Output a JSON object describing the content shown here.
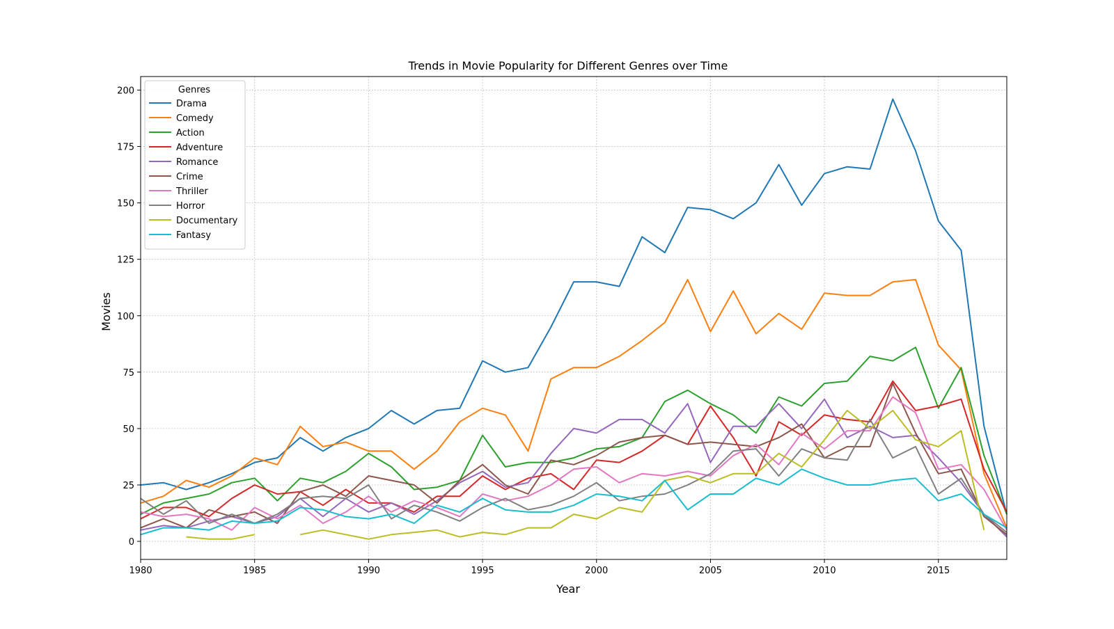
{
  "chart_data": {
    "type": "line",
    "title": "Trends in Movie Popularity for Different Genres over Time",
    "xlabel": "Year",
    "ylabel": "Movies",
    "xlim": [
      1980,
      2018
    ],
    "ylim": [
      -8,
      206
    ],
    "xticks": [
      1980,
      1985,
      1990,
      1995,
      2000,
      2005,
      2010,
      2015
    ],
    "yticks": [
      0,
      25,
      50,
      75,
      100,
      125,
      150,
      175,
      200
    ],
    "grid": true,
    "grid_style": "dotted",
    "legend": {
      "title": "Genres",
      "placement": "top-left"
    },
    "x": [
      1980,
      1981,
      1982,
      1983,
      1984,
      1985,
      1986,
      1987,
      1988,
      1989,
      1990,
      1991,
      1992,
      1993,
      1994,
      1995,
      1996,
      1997,
      1998,
      1999,
      2000,
      2001,
      2002,
      2003,
      2004,
      2005,
      2006,
      2007,
      2008,
      2009,
      2010,
      2011,
      2012,
      2013,
      2014,
      2015,
      2016,
      2017,
      2018
    ],
    "series": [
      {
        "name": "Drama",
        "color": "#1f77b4",
        "values": [
          25,
          26,
          23,
          26,
          30,
          35,
          37,
          46,
          40,
          46,
          50,
          58,
          52,
          58,
          59,
          80,
          75,
          77,
          95,
          115,
          115,
          113,
          135,
          128,
          148,
          147,
          143,
          150,
          167,
          149,
          163,
          166,
          165,
          196,
          173,
          142,
          129,
          51,
          12
        ]
      },
      {
        "name": "Comedy",
        "color": "#ff7f0e",
        "values": [
          17,
          20,
          27,
          24,
          29,
          37,
          34,
          51,
          42,
          44,
          40,
          40,
          32,
          40,
          53,
          59,
          56,
          40,
          72,
          77,
          77,
          82,
          89,
          97,
          116,
          93,
          111,
          92,
          101,
          94,
          110,
          109,
          109,
          115,
          116,
          87,
          76,
          30,
          6
        ]
      },
      {
        "name": "Action",
        "color": "#2ca02c",
        "values": [
          12,
          17,
          19,
          21,
          26,
          28,
          18,
          28,
          26,
          31,
          39,
          33,
          23,
          24,
          27,
          47,
          33,
          35,
          35,
          37,
          41,
          42,
          46,
          62,
          67,
          61,
          56,
          48,
          64,
          60,
          70,
          71,
          82,
          80,
          86,
          59,
          77,
          38,
          12
        ]
      },
      {
        "name": "Adventure",
        "color": "#d62728",
        "values": [
          10,
          15,
          15,
          11,
          19,
          25,
          21,
          22,
          16,
          23,
          17,
          17,
          13,
          20,
          20,
          29,
          23,
          28,
          30,
          23,
          36,
          35,
          40,
          47,
          43,
          60,
          46,
          29,
          53,
          47,
          56,
          54,
          53,
          71,
          58,
          60,
          63,
          32,
          13
        ]
      },
      {
        "name": "Romance",
        "color": "#9467bd",
        "values": [
          5,
          7,
          6,
          9,
          11,
          8,
          11,
          19,
          11,
          19,
          13,
          17,
          12,
          18,
          26,
          31,
          24,
          26,
          39,
          50,
          48,
          54,
          54,
          48,
          61,
          35,
          51,
          51,
          61,
          50,
          63,
          46,
          51,
          46,
          47,
          37,
          26,
          12,
          2
        ]
      },
      {
        "name": "Crime",
        "color": "#8c564b",
        "values": [
          6,
          10,
          6,
          14,
          11,
          13,
          8,
          22,
          25,
          20,
          29,
          27,
          25,
          17,
          27,
          34,
          25,
          21,
          36,
          34,
          38,
          44,
          46,
          47,
          43,
          44,
          43,
          42,
          46,
          52,
          37,
          42,
          42,
          70,
          48,
          30,
          32,
          11,
          3
        ]
      },
      {
        "name": "Thriller",
        "color": "#e377c2",
        "values": [
          13,
          11,
          12,
          10,
          5,
          15,
          10,
          16,
          8,
          13,
          20,
          13,
          18,
          15,
          11,
          21,
          18,
          20,
          25,
          32,
          33,
          26,
          30,
          29,
          31,
          29,
          38,
          43,
          34,
          48,
          41,
          49,
          49,
          64,
          57,
          32,
          34,
          23,
          5
        ]
      },
      {
        "name": "Horror",
        "color": "#7f7f7f",
        "values": [
          19,
          12,
          18,
          8,
          12,
          8,
          12,
          19,
          20,
          19,
          25,
          10,
          16,
          13,
          9,
          15,
          19,
          14,
          16,
          20,
          26,
          18,
          20,
          21,
          25,
          30,
          40,
          41,
          29,
          41,
          37,
          36,
          54,
          37,
          42,
          21,
          28,
          12,
          4
        ]
      },
      {
        "name": "Documentary",
        "color": "#bcbd22",
        "values": [
          null,
          null,
          2,
          1,
          1,
          3,
          null,
          3,
          5,
          3,
          1,
          3,
          4,
          5,
          2,
          4,
          3,
          6,
          6,
          12,
          10,
          15,
          13,
          27,
          29,
          26,
          30,
          30,
          39,
          33,
          45,
          58,
          50,
          58,
          45,
          42,
          49,
          5,
          null
        ]
      },
      {
        "name": "Fantasy",
        "color": "#17becf",
        "values": [
          3,
          6,
          6,
          5,
          9,
          8,
          9,
          15,
          14,
          11,
          10,
          12,
          8,
          16,
          13,
          19,
          14,
          13,
          13,
          16,
          21,
          20,
          18,
          27,
          14,
          21,
          21,
          28,
          25,
          32,
          28,
          25,
          25,
          27,
          28,
          18,
          21,
          12,
          6
        ]
      }
    ]
  }
}
